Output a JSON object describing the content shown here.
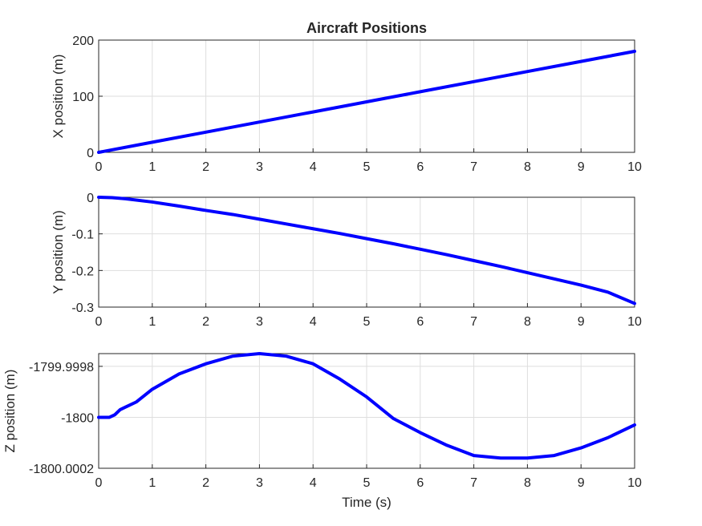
{
  "chart_data": [
    {
      "type": "line",
      "title": "Aircraft Positions",
      "xlabel": "",
      "ylabel": "X position (m)",
      "xlim": [
        0,
        10
      ],
      "ylim": [
        0,
        200
      ],
      "xticks": [
        "0",
        "1",
        "2",
        "3",
        "4",
        "5",
        "6",
        "7",
        "8",
        "9",
        "10"
      ],
      "yticks": [
        {
          "value": 0,
          "label": "0"
        },
        {
          "value": 100,
          "label": "100"
        },
        {
          "value": 200,
          "label": "200"
        }
      ],
      "grid": true,
      "color": "#0000ff",
      "x": [
        0,
        1,
        2,
        3,
        4,
        5,
        6,
        7,
        8,
        9,
        10
      ],
      "y": [
        0,
        18,
        36,
        54,
        72,
        90,
        108,
        126,
        144,
        162,
        180
      ]
    },
    {
      "type": "line",
      "title": "",
      "xlabel": "",
      "ylabel": "Y position (m)",
      "xlim": [
        0,
        10
      ],
      "ylim": [
        -0.3,
        0
      ],
      "xticks": [
        "0",
        "1",
        "2",
        "3",
        "4",
        "5",
        "6",
        "7",
        "8",
        "9",
        "10"
      ],
      "yticks": [
        {
          "value": 0,
          "label": "0"
        },
        {
          "value": -0.1,
          "label": "-0.1"
        },
        {
          "value": -0.2,
          "label": "-0.2"
        },
        {
          "value": -0.3,
          "label": "-0.3"
        }
      ],
      "grid": true,
      "color": "#0000ff",
      "x": [
        0,
        0.25,
        0.5,
        1,
        1.5,
        2,
        2.5,
        3,
        3.5,
        4,
        4.5,
        5,
        5.5,
        6,
        6.5,
        7,
        7.5,
        8,
        8.5,
        9,
        9.5,
        10
      ],
      "y": [
        0,
        -0.001,
        -0.004,
        -0.013,
        -0.024,
        -0.036,
        -0.047,
        -0.06,
        -0.073,
        -0.086,
        -0.099,
        -0.113,
        -0.127,
        -0.142,
        -0.157,
        -0.173,
        -0.189,
        -0.206,
        -0.223,
        -0.24,
        -0.259,
        -0.29
      ]
    },
    {
      "type": "line",
      "title": "",
      "xlabel": "Time (s)",
      "ylabel": "Z position (m)",
      "xlim": [
        0,
        10
      ],
      "ylim": [
        -1800.0002,
        -1799.99975
      ],
      "xticks": [
        "0",
        "1",
        "2",
        "3",
        "4",
        "5",
        "6",
        "7",
        "8",
        "9",
        "10"
      ],
      "yticks": [
        {
          "value": -1799.9998,
          "label": "-1799.9998"
        },
        {
          "value": -1800,
          "label": "-1800"
        },
        {
          "value": -1800.0002,
          "label": "-1800.0002"
        }
      ],
      "grid": true,
      "color": "#0000ff",
      "x": [
        0,
        0.2,
        0.3,
        0.4,
        0.5,
        0.7,
        1,
        1.5,
        2,
        2.5,
        3,
        3.5,
        4,
        4.5,
        5,
        5.5,
        6,
        6.5,
        7,
        7.5,
        8,
        8.5,
        9,
        9.5,
        10
      ],
      "y": [
        -1800,
        -1800,
        -1799.99999,
        -1799.99997,
        -1799.99996,
        -1799.99994,
        -1799.99989,
        -1799.99983,
        -1799.99979,
        -1799.99976,
        -1799.99975,
        -1799.99976,
        -1799.99979,
        -1799.99985,
        -1799.99992,
        -1800.000005,
        -1800.00006,
        -1800.00011,
        -1800.00015,
        -1800.00016,
        -1800.00016,
        -1800.00015,
        -1800.00012,
        -1800.00008,
        -1800.00003
      ]
    }
  ]
}
